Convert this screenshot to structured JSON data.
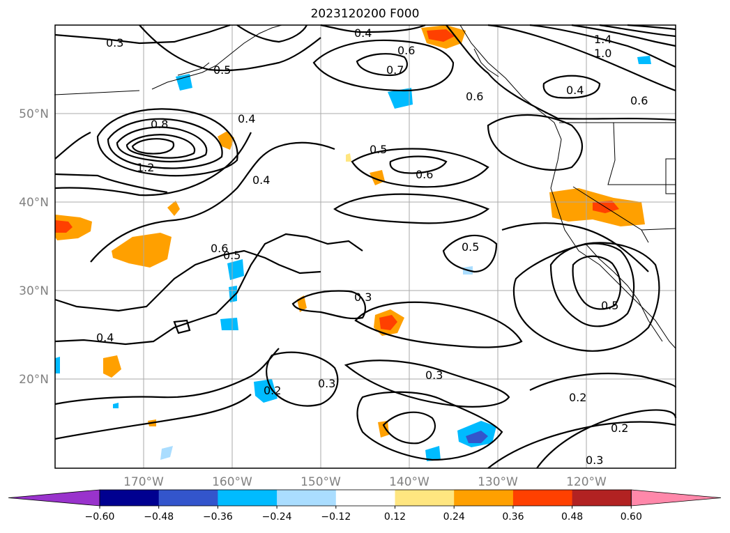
{
  "title": "2023120200 F000",
  "longitude_labels": [
    "170°W",
    "160°W",
    "150°W",
    "140°W",
    "130°W",
    "120°W"
  ],
  "latitude_labels": [
    "50°N",
    "40°N",
    "30°N",
    "20°N"
  ],
  "contour_labels": [
    "0.3",
    "0.4",
    "0.5",
    "0.6",
    "0.7",
    "0.8",
    "1.0",
    "1.2",
    "1.4",
    "0.2"
  ],
  "colorbar": {
    "ticks": [
      "−0.60",
      "−0.48",
      "−0.36",
      "−0.24",
      "−0.12",
      "0.12",
      "0.24",
      "0.36",
      "0.48",
      "0.60"
    ],
    "colors": [
      "#9933cc",
      "#000090",
      "#3355cc",
      "#00bbff",
      "#aaddff",
      "#ffffff",
      "#ffe680",
      "#ffa000",
      "#ff4000",
      "#b22222",
      "#ff88aa"
    ]
  }
}
